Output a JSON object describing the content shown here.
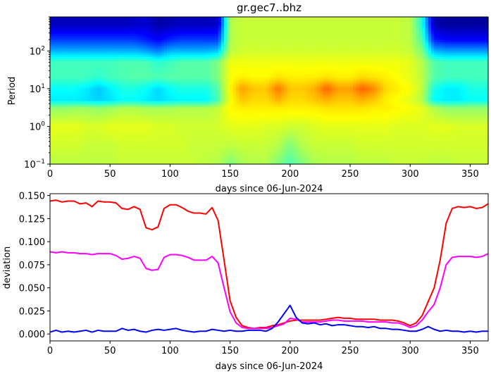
{
  "chart_data": [
    {
      "type": "heatmap",
      "title": "gr.gec7..bhz",
      "xlabel": "days since 06-Jun-2024",
      "ylabel": "Period",
      "xlim": [
        0,
        365
      ],
      "ylim": [
        0.1,
        800
      ],
      "yscale": "log",
      "colormap": "jet",
      "x_ticks": [
        0,
        50,
        100,
        150,
        200,
        250,
        300,
        350
      ],
      "y_ticks": [
        {
          "value": 0.1,
          "base": "10",
          "exp": "−1"
        },
        {
          "value": 1,
          "base": "10",
          "exp": "0"
        },
        {
          "value": 10,
          "base": "10",
          "exp": "1"
        },
        {
          "value": 100,
          "base": "10",
          "exp": "2"
        }
      ],
      "x": [
        0,
        10,
        20,
        30,
        40,
        50,
        60,
        70,
        80,
        90,
        100,
        110,
        120,
        130,
        140,
        150,
        160,
        170,
        180,
        190,
        200,
        210,
        220,
        230,
        240,
        250,
        260,
        270,
        280,
        290,
        300,
        310,
        320,
        330,
        340,
        350,
        360
      ],
      "period_bands": [
        0.1,
        0.3,
        1,
        3,
        5,
        10,
        20,
        50,
        100,
        200,
        500
      ],
      "intensity_note": "relative level 0-1 per period band (rows) and day (columns)",
      "z": [
        [
          0.55,
          0.56,
          0.56,
          0.56,
          0.56,
          0.56,
          0.57,
          0.57,
          0.57,
          0.57,
          0.57,
          0.57,
          0.57,
          0.56,
          0.55,
          0.5,
          0.54,
          0.55,
          0.55,
          0.5,
          0.45,
          0.5,
          0.54,
          0.55,
          0.55,
          0.55,
          0.56,
          0.56,
          0.56,
          0.57,
          0.57,
          0.57,
          0.56,
          0.56,
          0.57,
          0.57,
          0.57
        ],
        [
          0.58,
          0.58,
          0.58,
          0.57,
          0.57,
          0.57,
          0.58,
          0.58,
          0.58,
          0.58,
          0.58,
          0.58,
          0.57,
          0.57,
          0.57,
          0.56,
          0.57,
          0.57,
          0.57,
          0.55,
          0.5,
          0.55,
          0.57,
          0.57,
          0.57,
          0.57,
          0.58,
          0.58,
          0.58,
          0.58,
          0.58,
          0.58,
          0.58,
          0.58,
          0.58,
          0.58,
          0.58
        ],
        [
          0.6,
          0.6,
          0.6,
          0.59,
          0.59,
          0.6,
          0.6,
          0.6,
          0.6,
          0.59,
          0.59,
          0.58,
          0.58,
          0.58,
          0.58,
          0.6,
          0.6,
          0.6,
          0.59,
          0.59,
          0.58,
          0.58,
          0.59,
          0.6,
          0.6,
          0.6,
          0.6,
          0.6,
          0.6,
          0.59,
          0.59,
          0.59,
          0.6,
          0.6,
          0.59,
          0.59,
          0.59
        ],
        [
          0.52,
          0.52,
          0.53,
          0.53,
          0.52,
          0.53,
          0.55,
          0.55,
          0.54,
          0.54,
          0.54,
          0.55,
          0.55,
          0.55,
          0.57,
          0.63,
          0.64,
          0.64,
          0.64,
          0.64,
          0.64,
          0.64,
          0.64,
          0.65,
          0.65,
          0.65,
          0.65,
          0.64,
          0.64,
          0.63,
          0.62,
          0.6,
          0.55,
          0.52,
          0.52,
          0.52,
          0.52
        ],
        [
          0.36,
          0.36,
          0.36,
          0.35,
          0.33,
          0.35,
          0.38,
          0.38,
          0.36,
          0.34,
          0.36,
          0.37,
          0.37,
          0.37,
          0.45,
          0.62,
          0.68,
          0.66,
          0.66,
          0.7,
          0.66,
          0.66,
          0.68,
          0.7,
          0.68,
          0.68,
          0.7,
          0.68,
          0.64,
          0.62,
          0.6,
          0.55,
          0.38,
          0.36,
          0.36,
          0.38,
          0.38
        ],
        [
          0.38,
          0.38,
          0.38,
          0.36,
          0.32,
          0.36,
          0.4,
          0.4,
          0.38,
          0.34,
          0.38,
          0.4,
          0.4,
          0.4,
          0.46,
          0.63,
          0.72,
          0.68,
          0.68,
          0.76,
          0.68,
          0.68,
          0.7,
          0.78,
          0.72,
          0.72,
          0.78,
          0.74,
          0.66,
          0.64,
          0.62,
          0.56,
          0.4,
          0.36,
          0.36,
          0.4,
          0.4
        ],
        [
          0.44,
          0.44,
          0.44,
          0.44,
          0.42,
          0.44,
          0.45,
          0.46,
          0.46,
          0.45,
          0.46,
          0.46,
          0.46,
          0.46,
          0.5,
          0.62,
          0.64,
          0.63,
          0.63,
          0.65,
          0.64,
          0.64,
          0.64,
          0.65,
          0.64,
          0.64,
          0.66,
          0.65,
          0.64,
          0.62,
          0.6,
          0.56,
          0.46,
          0.44,
          0.44,
          0.44,
          0.44
        ],
        [
          0.44,
          0.44,
          0.44,
          0.44,
          0.44,
          0.44,
          0.45,
          0.45,
          0.45,
          0.42,
          0.44,
          0.46,
          0.46,
          0.46,
          0.5,
          0.61,
          0.61,
          0.61,
          0.61,
          0.61,
          0.61,
          0.61,
          0.61,
          0.61,
          0.61,
          0.61,
          0.61,
          0.61,
          0.61,
          0.61,
          0.6,
          0.55,
          0.46,
          0.44,
          0.44,
          0.44,
          0.44
        ],
        [
          0.3,
          0.3,
          0.3,
          0.3,
          0.3,
          0.3,
          0.3,
          0.3,
          0.28,
          0.25,
          0.3,
          0.3,
          0.3,
          0.3,
          0.32,
          0.56,
          0.58,
          0.58,
          0.58,
          0.58,
          0.58,
          0.58,
          0.58,
          0.58,
          0.58,
          0.58,
          0.58,
          0.58,
          0.58,
          0.58,
          0.57,
          0.5,
          0.3,
          0.28,
          0.28,
          0.28,
          0.28
        ],
        [
          0.18,
          0.18,
          0.18,
          0.18,
          0.18,
          0.18,
          0.18,
          0.18,
          0.15,
          0.12,
          0.16,
          0.18,
          0.18,
          0.18,
          0.18,
          0.55,
          0.57,
          0.57,
          0.57,
          0.57,
          0.57,
          0.57,
          0.57,
          0.57,
          0.57,
          0.57,
          0.57,
          0.57,
          0.57,
          0.57,
          0.56,
          0.45,
          0.15,
          0.12,
          0.12,
          0.12,
          0.12
        ],
        [
          0.06,
          0.06,
          0.06,
          0.06,
          0.06,
          0.06,
          0.06,
          0.07,
          0.08,
          0.04,
          0.05,
          0.06,
          0.06,
          0.06,
          0.07,
          0.55,
          0.57,
          0.57,
          0.57,
          0.57,
          0.57,
          0.57,
          0.57,
          0.57,
          0.57,
          0.57,
          0.57,
          0.57,
          0.57,
          0.57,
          0.56,
          0.4,
          0.05,
          0.03,
          0.03,
          0.03,
          0.03
        ]
      ]
    },
    {
      "type": "line",
      "title": "",
      "xlabel": "days since 06-Jun-2024",
      "ylabel": "deviation",
      "xlim": [
        0,
        365
      ],
      "ylim": [
        -0.0075,
        0.152
      ],
      "x_ticks": [
        0,
        50,
        100,
        150,
        200,
        250,
        300,
        350
      ],
      "y_ticks": [
        0.0,
        0.025,
        0.05,
        0.075,
        0.1,
        0.125,
        0.15
      ],
      "y_tick_labels": [
        "0.000",
        "0.025",
        "0.050",
        "0.075",
        "0.100",
        "0.125",
        "0.150"
      ],
      "x": [
        0,
        5,
        10,
        15,
        20,
        25,
        30,
        35,
        40,
        45,
        50,
        55,
        60,
        65,
        70,
        75,
        80,
        85,
        90,
        95,
        100,
        105,
        110,
        115,
        120,
        125,
        130,
        135,
        140,
        145,
        150,
        155,
        160,
        165,
        170,
        175,
        180,
        185,
        190,
        195,
        200,
        205,
        210,
        215,
        220,
        225,
        230,
        235,
        240,
        245,
        250,
        255,
        260,
        265,
        270,
        275,
        280,
        285,
        290,
        295,
        300,
        305,
        310,
        315,
        320,
        325,
        330,
        335,
        340,
        345,
        350,
        355,
        360,
        365
      ],
      "series": [
        {
          "color": "#ff0000",
          "values": [
            0.144,
            0.145,
            0.143,
            0.144,
            0.144,
            0.141,
            0.142,
            0.138,
            0.144,
            0.143,
            0.143,
            0.142,
            0.136,
            0.135,
            0.138,
            0.135,
            0.115,
            0.113,
            0.116,
            0.136,
            0.14,
            0.14,
            0.137,
            0.133,
            0.131,
            0.131,
            0.13,
            0.137,
            0.123,
            0.08,
            0.036,
            0.018,
            0.009,
            0.007,
            0.006,
            0.007,
            0.007,
            0.009,
            0.01,
            0.012,
            0.014,
            0.015,
            0.015,
            0.015,
            0.015,
            0.015,
            0.016,
            0.017,
            0.018,
            0.017,
            0.017,
            0.016,
            0.016,
            0.016,
            0.016,
            0.015,
            0.015,
            0.015,
            0.014,
            0.012,
            0.009,
            0.012,
            0.02,
            0.035,
            0.05,
            0.08,
            0.12,
            0.136,
            0.138,
            0.137,
            0.138,
            0.136,
            0.137,
            0.141
          ]
        },
        {
          "color": "#ff00ff",
          "values": [
            0.089,
            0.088,
            0.089,
            0.088,
            0.088,
            0.087,
            0.087,
            0.086,
            0.087,
            0.087,
            0.087,
            0.085,
            0.081,
            0.082,
            0.084,
            0.082,
            0.071,
            0.069,
            0.07,
            0.083,
            0.086,
            0.086,
            0.085,
            0.083,
            0.08,
            0.08,
            0.08,
            0.084,
            0.077,
            0.05,
            0.024,
            0.012,
            0.007,
            0.006,
            0.006,
            0.006,
            0.006,
            0.007,
            0.009,
            0.011,
            0.017,
            0.016,
            0.013,
            0.013,
            0.013,
            0.013,
            0.014,
            0.015,
            0.015,
            0.014,
            0.014,
            0.014,
            0.014,
            0.013,
            0.013,
            0.013,
            0.013,
            0.012,
            0.012,
            0.01,
            0.007,
            0.009,
            0.015,
            0.024,
            0.032,
            0.05,
            0.075,
            0.083,
            0.084,
            0.084,
            0.084,
            0.083,
            0.084,
            0.087
          ]
        },
        {
          "color": "#0000ff",
          "values": [
            0.002,
            0.004,
            0.002,
            0.003,
            0.002,
            0.003,
            0.004,
            0.002,
            0.004,
            0.003,
            0.003,
            0.003,
            0.006,
            0.004,
            0.005,
            0.003,
            0.002,
            0.004,
            0.005,
            0.004,
            0.005,
            0.006,
            0.004,
            0.003,
            0.002,
            0.003,
            0.003,
            0.005,
            0.004,
            0.003,
            0.004,
            0.003,
            0.003,
            0.004,
            0.004,
            0.004,
            0.003,
            0.006,
            0.013,
            0.022,
            0.031,
            0.018,
            0.012,
            0.011,
            0.012,
            0.01,
            0.011,
            0.009,
            0.01,
            0.01,
            0.009,
            0.008,
            0.008,
            0.007,
            0.008,
            0.006,
            0.006,
            0.005,
            0.005,
            0.004,
            0.003,
            0.003,
            0.005,
            0.008,
            0.005,
            0.003,
            0.004,
            0.003,
            0.003,
            0.002,
            0.003,
            0.002,
            0.003,
            0.003
          ]
        }
      ]
    }
  ]
}
